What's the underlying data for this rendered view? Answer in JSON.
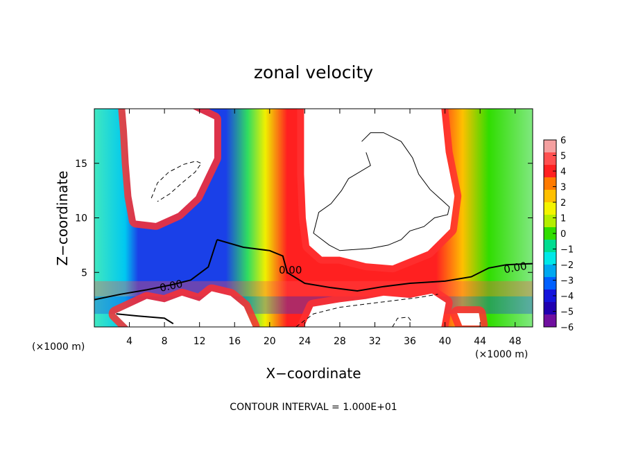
{
  "chart_data": {
    "type": "heatmap",
    "title": "zonal velocity",
    "xlabel": "X−coordinate",
    "ylabel": "Z−coordinate",
    "x_unit_label": "(×1000 m)",
    "y_unit_label": "(×1000 m)",
    "footer": "CONTOUR INTERVAL =  1.000E+01",
    "xlim": [
      0,
      50
    ],
    "ylim": [
      0,
      20
    ],
    "x_ticks": [
      4,
      8,
      12,
      16,
      20,
      24,
      28,
      32,
      36,
      40,
      44,
      48
    ],
    "y_ticks": [
      5,
      10,
      15
    ],
    "colorbar": {
      "min": -6,
      "max": 6,
      "ticks": [
        "6",
        "5",
        "4",
        "3",
        "2",
        "1",
        "0",
        "−1",
        "−2",
        "−3",
        "−4",
        "−5",
        "−6"
      ],
      "colors": [
        "#f4a0a0",
        "#ff5050",
        "#ff2020",
        "#ff7a00",
        "#ffc000",
        "#f4f400",
        "#b4ee00",
        "#30dd00",
        "#00dd90",
        "#00e8e8",
        "#00a8f0",
        "#0060ff",
        "#1414dc",
        "#2000b0",
        "#7010a0"
      ]
    },
    "contour_labels": [
      "0.00",
      "0.00",
      "0.00"
    ],
    "regions": [
      {
        "name": "upper-left-positive-core",
        "value": 7,
        "points": [
          [
            3.6,
            19.9
          ],
          [
            6,
            20
          ],
          [
            9,
            20
          ],
          [
            11,
            20
          ],
          [
            13.6,
            19
          ],
          [
            13.6,
            15.5
          ],
          [
            11.5,
            12
          ],
          [
            9.5,
            10.5
          ],
          [
            7,
            9.6
          ],
          [
            4.8,
            9.8
          ],
          [
            4.3,
            12
          ],
          [
            4,
            15
          ],
          [
            3.8,
            18
          ]
        ]
      },
      {
        "name": "central-positive-core",
        "value": 7,
        "points": [
          [
            24,
            19.9
          ],
          [
            26,
            20
          ],
          [
            30,
            20
          ],
          [
            33,
            20
          ],
          [
            39.5,
            20
          ],
          [
            40,
            16
          ],
          [
            41,
            12
          ],
          [
            40.5,
            9
          ],
          [
            38,
            7
          ],
          [
            34,
            5.7
          ],
          [
            31,
            5.9
          ],
          [
            28,
            6.5
          ],
          [
            26,
            6.5
          ],
          [
            24.6,
            7.5
          ],
          [
            24.2,
            10
          ],
          [
            24,
            14
          ]
        ]
      },
      {
        "name": "bottom-left-positive-core",
        "value": 7,
        "points": [
          [
            2.5,
            1.2
          ],
          [
            6,
            2.5
          ],
          [
            8,
            2.2
          ],
          [
            10,
            2.8
          ],
          [
            12,
            2.3
          ],
          [
            13.4,
            3.2
          ],
          [
            15.5,
            2.8
          ],
          [
            17,
            1.8
          ],
          [
            18,
            0
          ],
          [
            4,
            0
          ]
        ]
      },
      {
        "name": "bottom-mid-positive-core",
        "value": 7,
        "points": [
          [
            24,
            0
          ],
          [
            25,
            1.8
          ],
          [
            28,
            2.2
          ],
          [
            31,
            2.5
          ],
          [
            33,
            2.8
          ],
          [
            36,
            2.6
          ],
          [
            38.5,
            3
          ],
          [
            40,
            2.2
          ],
          [
            39.5,
            0
          ]
        ]
      },
      {
        "name": "bottom-right-positive-core",
        "value": 7,
        "points": [
          [
            41.5,
            1.2
          ],
          [
            43.8,
            1.2
          ],
          [
            44,
            0.2
          ],
          [
            42,
            0.2
          ]
        ]
      }
    ],
    "solid_contours": [
      {
        "points": [
          [
            30.5,
            17
          ],
          [
            31.5,
            17.8
          ],
          [
            33,
            17.8
          ],
          [
            35,
            17
          ],
          [
            36.3,
            15.5
          ],
          [
            37,
            14
          ],
          [
            38.3,
            12.6
          ],
          [
            40.5,
            11
          ],
          [
            40.3,
            10.3
          ],
          [
            38.8,
            10
          ],
          [
            37.6,
            9.2
          ],
          [
            36,
            8.8
          ],
          [
            35,
            8
          ],
          [
            33.5,
            7.5
          ],
          [
            31.5,
            7.2
          ],
          [
            28,
            7
          ],
          [
            26.8,
            7.5
          ],
          [
            25,
            8.6
          ],
          [
            25.6,
            10.5
          ],
          [
            27,
            11.3
          ],
          [
            28.2,
            12.5
          ],
          [
            29,
            13.6
          ],
          [
            31.5,
            14.8
          ],
          [
            31,
            16
          ]
        ]
      },
      {
        "points": [
          [
            14,
            8
          ],
          [
            17,
            7.3
          ],
          [
            20,
            7
          ],
          [
            21.5,
            6.5
          ],
          [
            22,
            5
          ],
          [
            24,
            4
          ],
          [
            27,
            3.6
          ],
          [
            30,
            3.3
          ],
          [
            33,
            3.7
          ],
          [
            36,
            4
          ],
          [
            40,
            4.2
          ],
          [
            43,
            4.6
          ],
          [
            45,
            5.4
          ],
          [
            47,
            5.7
          ],
          [
            50,
            5.8
          ]
        ]
      },
      {
        "points": [
          [
            0,
            2.5
          ],
          [
            3,
            3
          ],
          [
            6,
            3.4
          ],
          [
            9,
            3.9
          ],
          [
            11,
            4.3
          ],
          [
            13,
            5.5
          ],
          [
            14,
            8
          ]
        ]
      },
      {
        "points": [
          [
            2.5,
            1.2
          ],
          [
            5,
            1
          ],
          [
            8,
            0.8
          ],
          [
            9,
            0.3
          ]
        ]
      }
    ],
    "dashed_contours": [
      {
        "points": [
          [
            6.5,
            11.8
          ],
          [
            7.2,
            13.2
          ],
          [
            8.5,
            14.2
          ],
          [
            10.2,
            14.9
          ],
          [
            11.6,
            15.2
          ],
          [
            12.2,
            15
          ],
          [
            11.5,
            14.2
          ],
          [
            10,
            13.2
          ],
          [
            8.6,
            12.2
          ],
          [
            7.2,
            11.5
          ]
        ]
      },
      {
        "points": [
          [
            23,
            0
          ],
          [
            25,
            1.2
          ],
          [
            28,
            1.8
          ],
          [
            31,
            2.1
          ],
          [
            34,
            2.4
          ],
          [
            37,
            2.7
          ],
          [
            39.2,
            3
          ]
        ]
      },
      {
        "points": [
          [
            34,
            0
          ],
          [
            34.6,
            0.8
          ],
          [
            35.8,
            0.9
          ],
          [
            36.3,
            0.4
          ]
        ]
      }
    ]
  }
}
